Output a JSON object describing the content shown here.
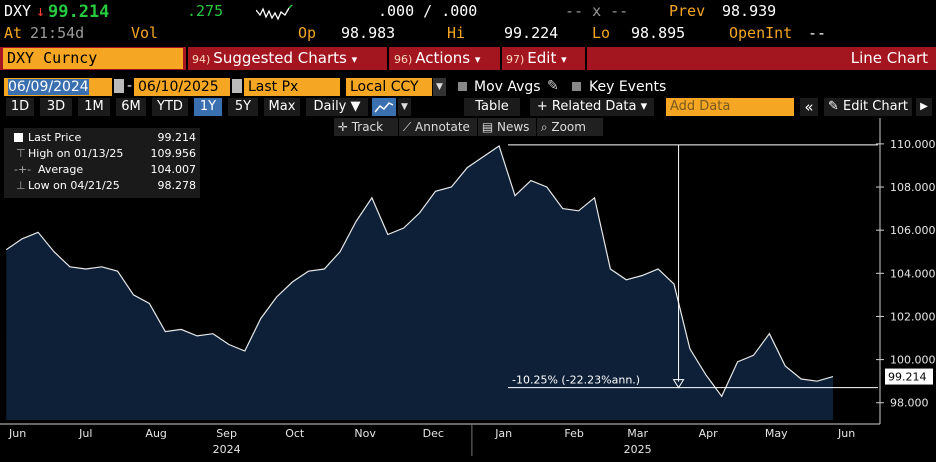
{
  "quote": {
    "symbol": "DXY",
    "arrow": "↓",
    "price": "99.214",
    "change": ".275",
    "bid_ask": ".000 / .000",
    "size": "-- x --",
    "prev_label": "Prev",
    "prev_value": "98.939",
    "at_label": "At",
    "time": "21:54d",
    "vol_label": "Vol",
    "vol_value": "",
    "open_label": "Op",
    "open_value": "98.983",
    "high_label": "Hi",
    "high_value": "99.224",
    "low_label": "Lo",
    "low_value": "98.895",
    "openint_label": "OpenInt",
    "openint_value": "--"
  },
  "function_bar": {
    "ticker": "DXY Curncy",
    "menus": [
      {
        "num": "94)",
        "label": "Suggested Charts",
        "caret": "▾"
      },
      {
        "num": "96)",
        "label": "Actions",
        "caret": "▾"
      },
      {
        "num": "97)",
        "label": "Edit",
        "caret": "▾"
      }
    ],
    "title": "Line Chart"
  },
  "settings": {
    "start_date": "06/09/2024",
    "end_date": "06/10/2025",
    "date_sep": "-",
    "field": "Last Px",
    "currency": "Local CCY",
    "mov_avgs": "Mov Avgs",
    "key_events": "Key Events"
  },
  "toolbar": {
    "periods": [
      "1D",
      "3D",
      "1M",
      "6M",
      "YTD",
      "1Y",
      "5Y",
      "Max"
    ],
    "active_period": "1Y",
    "frequency": "Daily ▼",
    "table": "Table",
    "related": "+ Related Data ▾",
    "add_data_placeholder": "Add Data",
    "collapse": "«",
    "edit_chart": "Edit Chart",
    "settings": "▶"
  },
  "chart_tools": {
    "track": "Track",
    "annotate": "Annotate",
    "news": "News",
    "zoom": "Zoom"
  },
  "legend": {
    "last_price_label": "Last Price",
    "last_price_value": "99.214",
    "high_label": "High on 01/13/25",
    "high_value": "109.956",
    "average_label": "Average",
    "average_value": "104.007",
    "low_label": "Low on 04/21/25",
    "low_value": "98.278"
  },
  "colors": {
    "amber": "#f5a623",
    "red_bar": "#a3161f",
    "area_fill": "#0d2038",
    "line": "#e8e8e8",
    "green": "#27c93f",
    "price_down": "#ff3b30"
  },
  "chart_data": {
    "type": "area",
    "series": [
      {
        "name": "Last Price",
        "x": [
          "2024-06-10",
          "2024-06-17",
          "2024-06-24",
          "2024-07-01",
          "2024-07-08",
          "2024-07-15",
          "2024-07-22",
          "2024-07-29",
          "2024-08-05",
          "2024-08-12",
          "2024-08-19",
          "2024-08-26",
          "2024-09-02",
          "2024-09-09",
          "2024-09-16",
          "2024-09-23",
          "2024-09-30",
          "2024-10-07",
          "2024-10-14",
          "2024-10-21",
          "2024-10-28",
          "2024-11-04",
          "2024-11-11",
          "2024-11-18",
          "2024-11-25",
          "2024-12-02",
          "2024-12-09",
          "2024-12-16",
          "2024-12-23",
          "2024-12-30",
          "2025-01-06",
          "2025-01-13",
          "2025-01-20",
          "2025-01-27",
          "2025-02-03",
          "2025-02-10",
          "2025-02-17",
          "2025-02-24",
          "2025-03-03",
          "2025-03-10",
          "2025-03-17",
          "2025-03-24",
          "2025-03-31",
          "2025-04-07",
          "2025-04-14",
          "2025-04-21",
          "2025-04-28",
          "2025-05-05",
          "2025-05-12",
          "2025-05-19",
          "2025-05-26",
          "2025-06-02",
          "2025-06-09"
        ],
        "values": [
          105.1,
          105.6,
          105.9,
          105.0,
          104.3,
          104.2,
          104.3,
          104.1,
          103.0,
          102.6,
          101.3,
          101.4,
          101.1,
          101.2,
          100.7,
          100.4,
          101.9,
          102.9,
          103.6,
          104.1,
          104.2,
          105.0,
          106.4,
          107.5,
          105.8,
          106.1,
          106.8,
          107.8,
          108.0,
          108.9,
          109.4,
          109.9,
          107.6,
          108.3,
          108.0,
          107.0,
          106.9,
          107.5,
          104.2,
          103.7,
          103.9,
          104.2,
          103.5,
          100.5,
          99.3,
          98.3,
          99.9,
          100.2,
          101.2,
          99.7,
          99.1,
          99.0,
          99.214
        ]
      }
    ],
    "ylim": [
      97.2,
      111.2
    ],
    "y_ticks": [
      98.0,
      100.0,
      102.0,
      104.0,
      106.0,
      108.0,
      110.0
    ],
    "y_tick_labels": [
      "98.000",
      "100.000",
      "102.000",
      "104.000",
      "106.000",
      "108.000",
      "110.000"
    ],
    "x_month_labels": [
      "Jun",
      "Jul",
      "Aug",
      "Sep",
      "Oct",
      "Nov",
      "Dec",
      "Jan",
      "Feb",
      "Mar",
      "Apr",
      "May",
      "Jun"
    ],
    "x_month_dates": [
      "2024-06-15",
      "2024-07-15",
      "2024-08-15",
      "2024-09-15",
      "2024-10-15",
      "2024-11-15",
      "2024-12-15",
      "2025-01-15",
      "2025-02-15",
      "2025-03-15",
      "2025-04-15",
      "2025-05-15",
      "2025-06-15"
    ],
    "year_labels": [
      "2024",
      "2025"
    ],
    "year_dates": [
      "2024-09-15",
      "2025-03-15"
    ],
    "last_value_label": "99.214",
    "annotation": {
      "text": "-10.25% (-22.23%ann.)",
      "from_value": 109.956,
      "to_value": 98.7,
      "at_date": "2025-04-02"
    },
    "grid": false
  }
}
